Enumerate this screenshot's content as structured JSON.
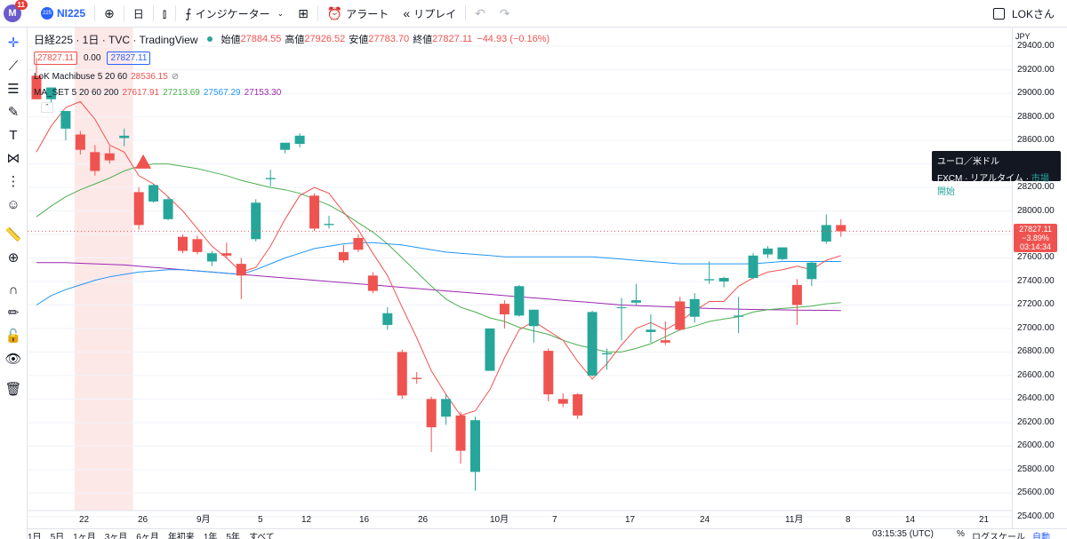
{
  "topbar": {
    "avatar_letter": "M",
    "notification_count": "11",
    "symbol_icon_text": "225",
    "symbol": "NI225",
    "interval": "日",
    "indicators_label": "インジケーター",
    "alert_label": "アラート",
    "replay_label": "リプレイ",
    "user": "LOKさん"
  },
  "legend": {
    "title": "日経225 · 1日 · TVC · TradingView",
    "open_k": "始値",
    "open_v": "27884.55",
    "high_k": "高値",
    "high_v": "27926.52",
    "low_k": "安値",
    "low_v": "27783.70",
    "close_k": "終値",
    "close_v": "27827.11",
    "change": "−44.93 (−0.16%)",
    "bid": "27827.11",
    "spread": "0.00",
    "ask": "27827.11",
    "ind1_name": "LoK Machibuse 5 20 60",
    "ind1_value": "28536.15",
    "ind2_name": "MA_SET 5 20 60 200",
    "ind2_v1": "27617.91",
    "ind2_v2": "27213.69",
    "ind2_v3": "27567.29",
    "ind2_v4": "27153.30"
  },
  "price_axis": {
    "currency": "JPY",
    "labels": [
      "29400.00",
      "29200.00",
      "29000.00",
      "28800.00",
      "28600.00",
      "28400.00",
      "28200.00",
      "28000.00",
      "27800.00",
      "27600.00",
      "27400.00",
      "27200.00",
      "27000.00",
      "26800.00",
      "26600.00",
      "26400.00",
      "26200.00",
      "26000.00",
      "25800.00",
      "25600.00",
      "25400.00"
    ]
  },
  "time_axis": {
    "labels": [
      "22",
      "26",
      "9月",
      "5",
      "12",
      "16",
      "26",
      "10月",
      "7",
      "17",
      "24",
      "11月",
      "8",
      "14",
      "21"
    ]
  },
  "price_tag": {
    "price": "27827.11",
    "change": "−3.89%",
    "countdown": "03:14:34"
  },
  "tooltip": {
    "line1": "ユーロ／米ドル",
    "line2a": "FXCM",
    "line2b": "リアルタイム",
    "line2c": "市場開始"
  },
  "bottombar": {
    "items": [
      "1日",
      "5日",
      "1ヶ月",
      "3ヶ月",
      "6ヶ月",
      "年初来",
      "1年",
      "5年",
      "すべて"
    ],
    "time": "03:15:35 (UTC)",
    "pct": "%",
    "log": "ログスケール",
    "auto": "自動"
  },
  "colors": {
    "up": "#26a69a",
    "down": "#ef5350",
    "ma5": "#ef5350",
    "ma20": "#4caf50",
    "ma60": "#2196f3",
    "ma200": "#9c27b0",
    "highlight": "#fde8e8"
  },
  "chart_data": {
    "type": "candlestick",
    "price_range": [
      25300,
      29560
    ],
    "candles": [
      {
        "o": 29150,
        "h": 29300,
        "l": 28950,
        "c": 28950
      },
      {
        "o": 28950,
        "h": 29050,
        "l": 28850,
        "c": 29050
      },
      {
        "o": 28700,
        "h": 28850,
        "l": 28600,
        "c": 28850
      },
      {
        "o": 28650,
        "h": 28680,
        "l": 28480,
        "c": 28520
      },
      {
        "o": 28500,
        "h": 28560,
        "l": 28300,
        "c": 28340
      },
      {
        "o": 28490,
        "h": 28550,
        "l": 28400,
        "c": 28430
      },
      {
        "o": 28620,
        "h": 28700,
        "l": 28550,
        "c": 28640
      },
      {
        "o": 28160,
        "h": 28200,
        "l": 27840,
        "c": 27880
      },
      {
        "o": 28080,
        "h": 28230,
        "l": 28070,
        "c": 28220
      },
      {
        "o": 27930,
        "h": 28120,
        "l": 27920,
        "c": 28100
      },
      {
        "o": 27780,
        "h": 27800,
        "l": 27640,
        "c": 27660
      },
      {
        "o": 27760,
        "h": 27790,
        "l": 27630,
        "c": 27650
      },
      {
        "o": 27570,
        "h": 27660,
        "l": 27530,
        "c": 27640
      },
      {
        "o": 27640,
        "h": 27730,
        "l": 27600,
        "c": 27620
      },
      {
        "o": 27550,
        "h": 27600,
        "l": 27250,
        "c": 27450
      },
      {
        "o": 27760,
        "h": 28100,
        "l": 27740,
        "c": 28070
      },
      {
        "o": 28270,
        "h": 28350,
        "l": 28210,
        "c": 28280
      },
      {
        "o": 28520,
        "h": 28580,
        "l": 28490,
        "c": 28580
      },
      {
        "o": 28570,
        "h": 28660,
        "l": 28540,
        "c": 28640
      },
      {
        "o": 28130,
        "h": 28150,
        "l": 27830,
        "c": 27850
      },
      {
        "o": 27880,
        "h": 27960,
        "l": 27850,
        "c": 27890
      },
      {
        "o": 27650,
        "h": 27710,
        "l": 27560,
        "c": 27580
      },
      {
        "o": 27770,
        "h": 27800,
        "l": 27650,
        "c": 27670
      },
      {
        "o": 27450,
        "h": 27480,
        "l": 27300,
        "c": 27320
      },
      {
        "o": 27030,
        "h": 27180,
        "l": 26990,
        "c": 27130
      },
      {
        "o": 26800,
        "h": 26820,
        "l": 26400,
        "c": 26430
      },
      {
        "o": 26580,
        "h": 26630,
        "l": 26530,
        "c": 26570
      },
      {
        "o": 26400,
        "h": 26420,
        "l": 25950,
        "c": 26160
      },
      {
        "o": 26250,
        "h": 26440,
        "l": 26180,
        "c": 26400
      },
      {
        "o": 26260,
        "h": 26290,
        "l": 25850,
        "c": 25960
      },
      {
        "o": 25780,
        "h": 26250,
        "l": 25620,
        "c": 26220
      },
      {
        "o": 26640,
        "h": 27000,
        "l": 26640,
        "c": 27000
      },
      {
        "o": 27210,
        "h": 27240,
        "l": 27000,
        "c": 27120
      },
      {
        "o": 27110,
        "h": 27370,
        "l": 27100,
        "c": 27360
      },
      {
        "o": 27020,
        "h": 27150,
        "l": 26880,
        "c": 27160
      },
      {
        "o": 26810,
        "h": 26830,
        "l": 26380,
        "c": 26440
      },
      {
        "o": 26400,
        "h": 26450,
        "l": 26330,
        "c": 26360
      },
      {
        "o": 26440,
        "h": 26450,
        "l": 26230,
        "c": 26260
      },
      {
        "o": 26600,
        "h": 27150,
        "l": 26590,
        "c": 27140
      },
      {
        "o": 26780,
        "h": 26830,
        "l": 26650,
        "c": 26790
      },
      {
        "o": 27180,
        "h": 27260,
        "l": 26900,
        "c": 27180
      },
      {
        "o": 27220,
        "h": 27380,
        "l": 27200,
        "c": 27240
      },
      {
        "o": 26970,
        "h": 27120,
        "l": 26880,
        "c": 26990
      },
      {
        "o": 26900,
        "h": 27060,
        "l": 26860,
        "c": 26880
      },
      {
        "o": 27230,
        "h": 27270,
        "l": 26980,
        "c": 26990
      },
      {
        "o": 27100,
        "h": 27300,
        "l": 27050,
        "c": 27250
      },
      {
        "o": 27410,
        "h": 27570,
        "l": 27380,
        "c": 27420
      },
      {
        "o": 27400,
        "h": 27440,
        "l": 27350,
        "c": 27430
      },
      {
        "o": 27100,
        "h": 27270,
        "l": 26960,
        "c": 27110
      },
      {
        "o": 27430,
        "h": 27640,
        "l": 27420,
        "c": 27620
      },
      {
        "o": 27630,
        "h": 27700,
        "l": 27600,
        "c": 27680
      },
      {
        "o": 27590,
        "h": 27690,
        "l": 27580,
        "c": 27690
      },
      {
        "o": 27370,
        "h": 27420,
        "l": 27030,
        "c": 27200
      },
      {
        "o": 27420,
        "h": 27570,
        "l": 27360,
        "c": 27560
      },
      {
        "o": 27740,
        "h": 27970,
        "l": 27720,
        "c": 27880
      },
      {
        "o": 27880,
        "h": 27930,
        "l": 27780,
        "c": 27827
      }
    ],
    "ma5": [
      28500,
      28720,
      28880,
      28930,
      28780,
      28560,
      28500,
      28300,
      28230,
      28120,
      28000,
      27850,
      27700,
      27600,
      27480,
      27520,
      27700,
      27930,
      28130,
      28200,
      28150,
      27990,
      27840,
      27640,
      27450,
      27180,
      26920,
      26640,
      26440,
      26260,
      26300,
      26480,
      26750,
      26990,
      27060,
      26980,
      26900,
      26720,
      26570,
      26700,
      26860,
      27000,
      27050,
      26990,
      27060,
      27150,
      27230,
      27230,
      27360,
      27430,
      27480,
      27500,
      27530,
      27500,
      27580,
      27620
    ],
    "ma20": [
      27950,
      28040,
      28120,
      28180,
      28230,
      28280,
      28340,
      28380,
      28400,
      28400,
      28380,
      28360,
      28330,
      28300,
      28260,
      28230,
      28200,
      28180,
      28150,
      28100,
      28050,
      27980,
      27900,
      27820,
      27720,
      27600,
      27480,
      27360,
      27250,
      27180,
      27140,
      27090,
      27060,
      27010,
      26980,
      26950,
      26900,
      26860,
      26830,
      26800,
      26800,
      26830,
      26870,
      26930,
      26990,
      27020,
      27060,
      27080,
      27100,
      27140,
      27160,
      27170,
      27180,
      27190,
      27210,
      27220
    ],
    "ma60": [
      27200,
      27280,
      27330,
      27370,
      27410,
      27440,
      27460,
      27480,
      27490,
      27500,
      27500,
      27490,
      27480,
      27470,
      27460,
      27500,
      27550,
      27600,
      27640,
      27680,
      27700,
      27720,
      27730,
      27730,
      27720,
      27710,
      27690,
      27670,
      27650,
      27640,
      27630,
      27620,
      27610,
      27610,
      27610,
      27610,
      27610,
      27610,
      27610,
      27600,
      27590,
      27580,
      27570,
      27560,
      27550,
      27550,
      27550,
      27550,
      27550,
      27550,
      27560,
      27570,
      27570,
      27570,
      27570,
      27570
    ],
    "ma200": [
      27560,
      27560,
      27560,
      27555,
      27550,
      27545,
      27540,
      27530,
      27520,
      27510,
      27500,
      27490,
      27480,
      27470,
      27460,
      27450,
      27440,
      27430,
      27420,
      27410,
      27400,
      27390,
      27380,
      27370,
      27360,
      27350,
      27340,
      27330,
      27320,
      27310,
      27300,
      27290,
      27280,
      27270,
      27260,
      27250,
      27240,
      27230,
      27220,
      27210,
      27200,
      27195,
      27190,
      27185,
      27180,
      27175,
      27170,
      27168,
      27165,
      27162,
      27160,
      27158,
      27156,
      27155,
      27154,
      27153
    ]
  }
}
